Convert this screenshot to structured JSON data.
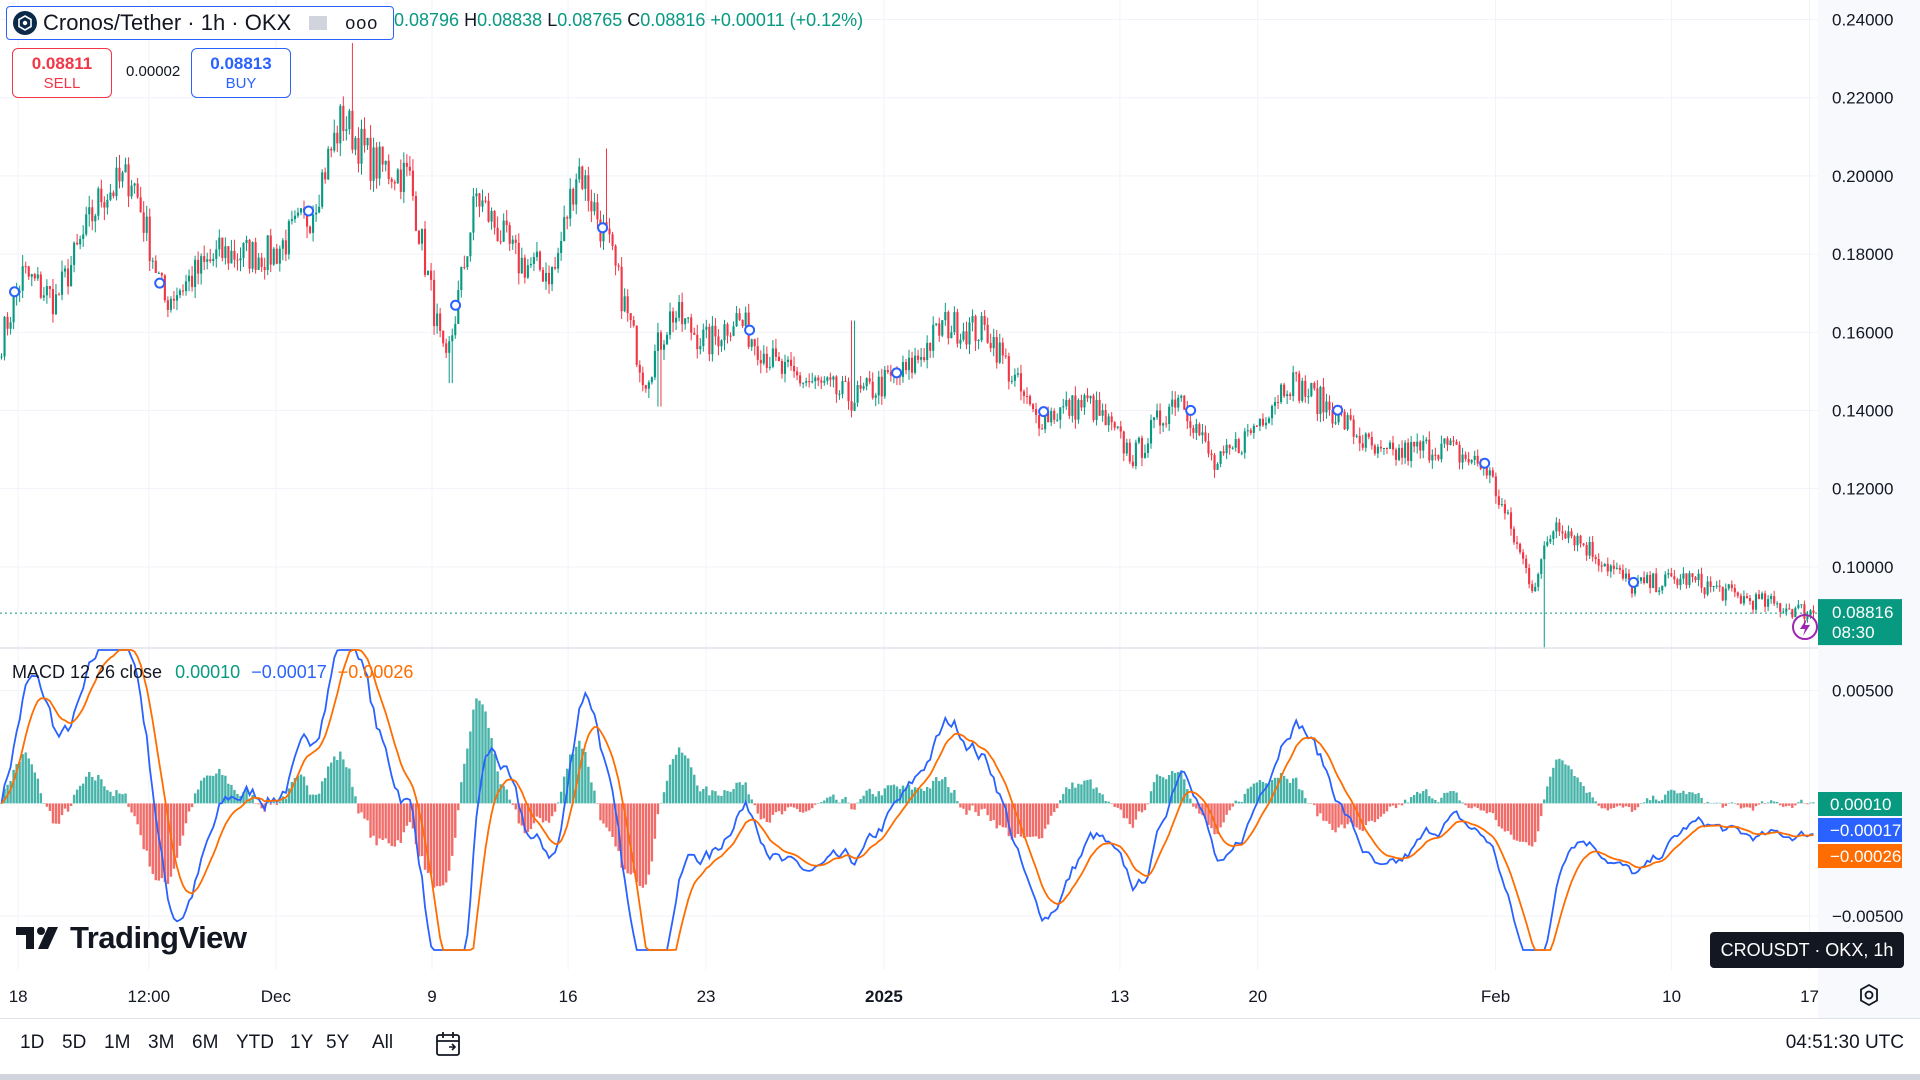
{
  "header": {
    "title": "Cronos/Tether · 1h · OKX",
    "more_label": "ooo",
    "ohlc": {
      "o_value": "0.08796",
      "h_label": "H",
      "h_value": "0.08838",
      "l_label": "L",
      "l_value": "0.08765",
      "c_label": "C",
      "c_value": "0.08816",
      "change": "+0.00011 (+0.12%)"
    }
  },
  "trade": {
    "sell_price": "0.08811",
    "sell_label": "SELL",
    "spread": "0.00002",
    "buy_price": "0.08813",
    "buy_label": "BUY"
  },
  "price_axis": {
    "labels": [
      "0.24000",
      "0.22000",
      "0.20000",
      "0.18000",
      "0.16000",
      "0.14000",
      "0.12000",
      "0.10000"
    ],
    "current_price": "0.08816",
    "countdown": "08:30"
  },
  "macd": {
    "legend_name": "MACD 12 26 close",
    "hist_value": "0.00010",
    "macd_value": "−0.00017",
    "signal_value": "−0.00026",
    "axis_labels": [
      "0.00500",
      "−0.00500"
    ]
  },
  "time_axis": {
    "labels": [
      "18",
      "12:00",
      "Dec",
      "9",
      "16",
      "23",
      "2025",
      "13",
      "20",
      "Feb",
      "10",
      "17"
    ]
  },
  "watermark": "TradingView",
  "tooltip": "CROUSDT · OKX, 1h",
  "bottom": {
    "ranges": [
      "1D",
      "5D",
      "1M",
      "3M",
      "6M",
      "YTD",
      "1Y",
      "5Y",
      "All"
    ],
    "clock": "04:51:30 UTC"
  },
  "colors": {
    "up": "#089981",
    "down": "#f23645",
    "macd": "#2962ff",
    "signal": "#ff6d00",
    "grid": "#f0f3fa",
    "accent": "#2962ff"
  },
  "chart_data": {
    "type": "candlestick",
    "interval": "1h",
    "y_range": [
      0.08,
      0.245
    ],
    "price_anchors": [
      {
        "t": 0.0,
        "v": 0.158
      },
      {
        "t": 0.012,
        "v": 0.175
      },
      {
        "t": 0.03,
        "v": 0.168
      },
      {
        "t": 0.055,
        "v": 0.195
      },
      {
        "t": 0.072,
        "v": 0.2
      },
      {
        "t": 0.09,
        "v": 0.168
      },
      {
        "t": 0.12,
        "v": 0.18
      },
      {
        "t": 0.15,
        "v": 0.18
      },
      {
        "t": 0.17,
        "v": 0.19
      },
      {
        "t": 0.188,
        "v": 0.215
      },
      {
        "t": 0.205,
        "v": 0.203
      },
      {
        "t": 0.225,
        "v": 0.2
      },
      {
        "t": 0.245,
        "v": 0.15
      },
      {
        "t": 0.262,
        "v": 0.195
      },
      {
        "t": 0.285,
        "v": 0.178
      },
      {
        "t": 0.305,
        "v": 0.175
      },
      {
        "t": 0.318,
        "v": 0.203
      },
      {
        "t": 0.335,
        "v": 0.182
      },
      {
        "t": 0.355,
        "v": 0.148
      },
      {
        "t": 0.37,
        "v": 0.165
      },
      {
        "t": 0.39,
        "v": 0.157
      },
      {
        "t": 0.405,
        "v": 0.164
      },
      {
        "t": 0.43,
        "v": 0.15
      },
      {
        "t": 0.47,
        "v": 0.143
      },
      {
        "t": 0.5,
        "v": 0.15
      },
      {
        "t": 0.52,
        "v": 0.162
      },
      {
        "t": 0.545,
        "v": 0.16
      },
      {
        "t": 0.57,
        "v": 0.138
      },
      {
        "t": 0.6,
        "v": 0.142
      },
      {
        "t": 0.625,
        "v": 0.128
      },
      {
        "t": 0.65,
        "v": 0.145
      },
      {
        "t": 0.67,
        "v": 0.125
      },
      {
        "t": 0.69,
        "v": 0.135
      },
      {
        "t": 0.71,
        "v": 0.148
      },
      {
        "t": 0.735,
        "v": 0.14
      },
      {
        "t": 0.76,
        "v": 0.128
      },
      {
        "t": 0.795,
        "v": 0.131
      },
      {
        "t": 0.82,
        "v": 0.125
      },
      {
        "t": 0.845,
        "v": 0.095
      },
      {
        "t": 0.858,
        "v": 0.112
      },
      {
        "t": 0.88,
        "v": 0.103
      },
      {
        "t": 0.9,
        "v": 0.095
      },
      {
        "t": 0.93,
        "v": 0.097
      },
      {
        "t": 0.96,
        "v": 0.092
      },
      {
        "t": 1.0,
        "v": 0.08816
      }
    ],
    "spikes": [
      {
        "t": 0.248,
        "low": 0.147
      },
      {
        "t": 0.363,
        "low": 0.141
      },
      {
        "t": 0.47,
        "high": 0.163
      },
      {
        "t": 0.851,
        "low": 0.079
      },
      {
        "t": 0.193,
        "high": 0.234
      },
      {
        "t": 0.334,
        "high": 0.207
      }
    ],
    "macd_range": [
      -0.0065,
      0.0068
    ],
    "series": [
      {
        "name": "MACD 12 26 close",
        "last": -0.00017
      },
      {
        "name": "Signal",
        "last": -0.00026
      },
      {
        "name": "Histogram",
        "last": 0.0001
      }
    ]
  }
}
